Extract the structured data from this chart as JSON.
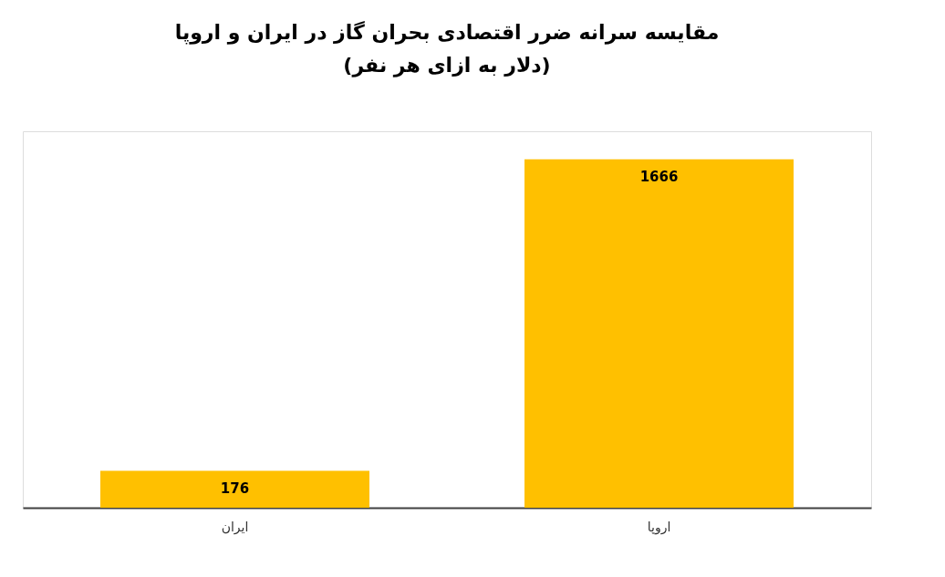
{
  "chart_data": {
    "type": "bar",
    "title": "مقایسه سرانه ضرر اقتصادی بحران گاز در ایران و اروپا",
    "subtitle": "(دلار به ازای هر نفر)",
    "categories": [
      "ایران",
      "اروپا"
    ],
    "values": [
      176,
      1666
    ],
    "color": "#ffc000",
    "data_labels": true
  }
}
